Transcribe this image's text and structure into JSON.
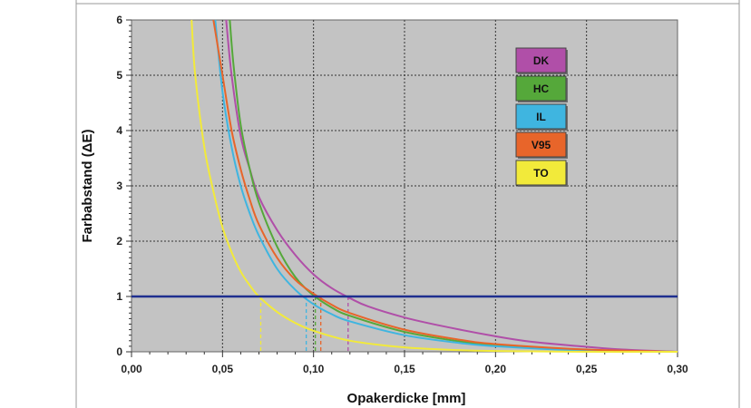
{
  "chart_data": {
    "type": "line",
    "title": "",
    "xlabel": "Opakerdicke [mm]",
    "ylabel": "Farbabstand (ΔE)",
    "xlim": [
      0,
      0.3
    ],
    "ylim": [
      0,
      6
    ],
    "x_ticks": [
      0,
      0.05,
      0.1,
      0.15,
      0.2,
      0.25,
      0.3
    ],
    "x_tick_labels": [
      "0,00",
      "0,05",
      "0,10",
      "0,15",
      "0,20",
      "0,25",
      "0,30"
    ],
    "y_ticks": [
      0,
      1,
      2,
      3,
      4,
      5,
      6
    ],
    "y_tick_labels": [
      "0",
      "1",
      "2",
      "3",
      "4",
      "5",
      "6"
    ],
    "grid": true,
    "legend_position": "top-right",
    "reference_line": {
      "y": 1,
      "color": "#1f2f8f"
    },
    "series": [
      {
        "name": "DK",
        "color": "#b04fa8",
        "threshold_x": 0.119,
        "x": [
          0.052,
          0.055,
          0.06,
          0.065,
          0.07,
          0.08,
          0.09,
          0.1,
          0.11,
          0.12,
          0.13,
          0.15,
          0.17,
          0.2,
          0.22,
          0.25,
          0.27,
          0.3
        ],
        "y": [
          6.0,
          5.0,
          3.9,
          3.3,
          2.8,
          2.2,
          1.75,
          1.4,
          1.15,
          0.97,
          0.82,
          0.62,
          0.47,
          0.28,
          0.18,
          0.09,
          0.04,
          0.0
        ]
      },
      {
        "name": "HC",
        "color": "#55a83a",
        "threshold_x": 0.101,
        "x": [
          0.054,
          0.056,
          0.06,
          0.065,
          0.07,
          0.08,
          0.09,
          0.1,
          0.11,
          0.12,
          0.15,
          0.18,
          0.2,
          0.25,
          0.3
        ],
        "y": [
          6.0,
          5.2,
          4.1,
          3.3,
          2.7,
          1.9,
          1.35,
          1.02,
          0.8,
          0.65,
          0.36,
          0.19,
          0.12,
          0.03,
          0.0
        ]
      },
      {
        "name": "IL",
        "color": "#3fb5e0",
        "threshold_x": 0.096,
        "x": [
          0.046,
          0.05,
          0.055,
          0.06,
          0.065,
          0.07,
          0.08,
          0.09,
          0.1,
          0.11,
          0.12,
          0.15,
          0.18,
          0.2,
          0.25,
          0.3
        ],
        "y": [
          6.0,
          4.7,
          3.7,
          3.0,
          2.5,
          2.1,
          1.5,
          1.12,
          0.86,
          0.68,
          0.55,
          0.3,
          0.16,
          0.1,
          0.02,
          0.0
        ]
      },
      {
        "name": "V95",
        "color": "#e8652a",
        "threshold_x": 0.104,
        "x": [
          0.045,
          0.05,
          0.055,
          0.06,
          0.065,
          0.07,
          0.08,
          0.09,
          0.1,
          0.11,
          0.12,
          0.15,
          0.18,
          0.2,
          0.25,
          0.3
        ],
        "y": [
          6.0,
          5.0,
          4.0,
          3.3,
          2.75,
          2.3,
          1.7,
          1.3,
          1.05,
          0.85,
          0.7,
          0.4,
          0.22,
          0.14,
          0.04,
          0.0
        ]
      },
      {
        "name": "TO",
        "color": "#f2ea3a",
        "threshold_x": 0.071,
        "x": [
          0.033,
          0.035,
          0.04,
          0.045,
          0.05,
          0.055,
          0.06,
          0.065,
          0.07,
          0.08,
          0.09,
          0.1,
          0.12,
          0.15,
          0.18,
          0.2,
          0.25,
          0.3
        ],
        "y": [
          6.0,
          5.0,
          3.7,
          2.9,
          2.25,
          1.8,
          1.45,
          1.2,
          1.0,
          0.72,
          0.52,
          0.38,
          0.2,
          0.08,
          0.03,
          0.015,
          0.0,
          0.0
        ]
      }
    ]
  }
}
